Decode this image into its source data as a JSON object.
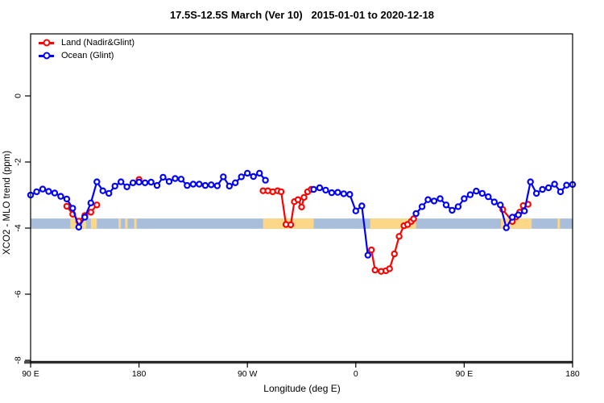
{
  "chart_data": {
    "type": "line",
    "title": "17.5S-12.5S March (Ver 10)   2015-01-01 to 2020-12-18",
    "xlabel": "Longitude (deg E)",
    "ylabel": "XCO2 - MLO trend (ppm)",
    "grid": false,
    "legend_position": "top-left",
    "x_axis": {
      "unit": "deg E (wrapping eastward from 90E)",
      "range_deg": [
        90,
        540
      ],
      "ticks": [
        {
          "deg": 90,
          "label": "90 E"
        },
        {
          "deg": 180,
          "label": "180"
        },
        {
          "deg": 270,
          "label": "90 W"
        },
        {
          "deg": 360,
          "label": "0"
        },
        {
          "deg": 450,
          "label": "90 E"
        },
        {
          "deg": 540,
          "label": "180"
        }
      ]
    },
    "y_axis": {
      "unit": "ppm",
      "range_ppm": [
        -8,
        1.9
      ],
      "ticks": [
        {
          "ppm": 0,
          "label": "0"
        },
        {
          "ppm": -2,
          "label": "-2"
        },
        {
          "ppm": -4,
          "label": "-4"
        },
        {
          "ppm": -6,
          "label": "-6"
        },
        {
          "ppm": -8,
          "label": "-8"
        }
      ]
    },
    "baseline": {
      "ppm": -8,
      "color": "#4d4d4d"
    },
    "reference_band": {
      "ppm_low": -4.02,
      "ppm_high": -3.71,
      "color": "#a9bedb",
      "flagged_color": "#fcd788",
      "flagged_segments_deg": [
        [
          123,
          136
        ],
        [
          140,
          145
        ],
        [
          163,
          165
        ],
        [
          168.5,
          170.5
        ],
        [
          176,
          178
        ],
        [
          283,
          325
        ],
        [
          372,
          410
        ],
        [
          480.5,
          506
        ],
        [
          527.5,
          529.5
        ]
      ]
    },
    "series": [
      {
        "name": "Land (Nadir&Glint)",
        "color": "#ff0000",
        "segments": [
          [
            [
              120,
              -3.34
            ],
            [
              125,
              -3.58
            ],
            [
              130,
              -3.79
            ],
            [
              135,
              -3.62
            ],
            [
              140,
              -3.52
            ],
            [
              145,
              -3.3
            ]
          ],
          [
            [
              180,
              -2.53
            ]
          ],
          [
            [
              283,
              -2.87
            ],
            [
              287,
              -2.87
            ],
            [
              291,
              -2.9
            ],
            [
              295,
              -2.87
            ],
            [
              298,
              -2.9
            ],
            [
              302,
              -3.89
            ],
            [
              306,
              -3.9
            ],
            [
              309,
              -3.2
            ],
            [
              312,
              -3.14
            ],
            [
              315,
              -3.36
            ],
            [
              317,
              -3.07
            ],
            [
              320,
              -2.9
            ],
            [
              323,
              -2.83
            ]
          ],
          [
            [
              373,
              -4.66
            ],
            [
              376,
              -5.27
            ],
            [
              381,
              -5.31
            ],
            [
              385,
              -5.29
            ],
            [
              388,
              -5.23
            ],
            [
              392,
              -4.78
            ],
            [
              396,
              -4.25
            ],
            [
              400,
              -3.93
            ],
            [
              403,
              -3.89
            ],
            [
              406,
              -3.8
            ],
            [
              408,
              -3.72
            ]
          ],
          [
            [
              482,
              -3.44
            ],
            [
              490,
              -3.8
            ],
            [
              493,
              -3.66
            ],
            [
              496,
              -3.52
            ],
            [
              499,
              -3.32
            ],
            [
              503,
              -3.28
            ]
          ]
        ]
      },
      {
        "name": "Ocean (Glint)",
        "color": "#0000ff",
        "segments": [
          [
            [
              90,
              -3.0
            ],
            [
              95,
              -2.9
            ],
            [
              100,
              -2.82
            ],
            [
              105,
              -2.89
            ],
            [
              110,
              -2.94
            ],
            [
              115,
              -3.04
            ],
            [
              120,
              -3.12
            ],
            [
              125,
              -3.4
            ],
            [
              130,
              -3.97
            ],
            [
              135,
              -3.67
            ],
            [
              140,
              -3.24
            ],
            [
              145,
              -2.6
            ],
            [
              150,
              -2.87
            ],
            [
              155,
              -2.95
            ],
            [
              160,
              -2.73
            ],
            [
              165,
              -2.6
            ],
            [
              170,
              -2.75
            ],
            [
              175,
              -2.63
            ],
            [
              180,
              -2.61
            ],
            [
              185,
              -2.63
            ],
            [
              190,
              -2.61
            ],
            [
              195,
              -2.71
            ],
            [
              200,
              -2.46
            ],
            [
              205,
              -2.59
            ],
            [
              210,
              -2.5
            ],
            [
              215,
              -2.52
            ],
            [
              220,
              -2.71
            ],
            [
              225,
              -2.67
            ],
            [
              230,
              -2.67
            ],
            [
              235,
              -2.71
            ],
            [
              240,
              -2.69
            ],
            [
              245,
              -2.72
            ],
            [
              250,
              -2.45
            ],
            [
              255,
              -2.73
            ],
            [
              260,
              -2.63
            ],
            [
              265,
              -2.45
            ],
            [
              270,
              -2.34
            ],
            [
              275,
              -2.44
            ],
            [
              280,
              -2.34
            ],
            [
              285,
              -2.55
            ]
          ],
          [
            [
              325,
              -2.83
            ],
            [
              330,
              -2.78
            ],
            [
              335,
              -2.85
            ],
            [
              340,
              -2.93
            ],
            [
              345,
              -2.92
            ],
            [
              350,
              -2.96
            ],
            [
              355,
              -2.98
            ],
            [
              360,
              -3.48
            ],
            [
              365,
              -3.33
            ],
            [
              370,
              -4.82
            ]
          ],
          [
            [
              410,
              -3.56
            ],
            [
              415,
              -3.35
            ],
            [
              420,
              -3.14
            ],
            [
              425,
              -3.18
            ],
            [
              430,
              -3.11
            ],
            [
              435,
              -3.3
            ],
            [
              440,
              -3.46
            ],
            [
              445,
              -3.35
            ],
            [
              450,
              -3.11
            ],
            [
              455,
              -2.99
            ],
            [
              460,
              -2.88
            ],
            [
              465,
              -2.95
            ],
            [
              470,
              -3.05
            ],
            [
              475,
              -3.21
            ],
            [
              480,
              -3.3
            ],
            [
              485,
              -3.99
            ],
            [
              490,
              -3.67
            ],
            [
              495,
              -3.6
            ],
            [
              500,
              -3.48
            ],
            [
              505,
              -2.6
            ],
            [
              510,
              -2.95
            ],
            [
              515,
              -2.83
            ],
            [
              520,
              -2.78
            ],
            [
              525,
              -2.67
            ],
            [
              530,
              -2.9
            ],
            [
              535,
              -2.7
            ],
            [
              540,
              -2.68
            ]
          ]
        ]
      }
    ]
  },
  "legend": {
    "items": [
      {
        "label": "Land (Nadir&Glint)",
        "color": "#ff0000"
      },
      {
        "label": "Ocean (Glint)",
        "color": "#0000ff"
      }
    ]
  }
}
